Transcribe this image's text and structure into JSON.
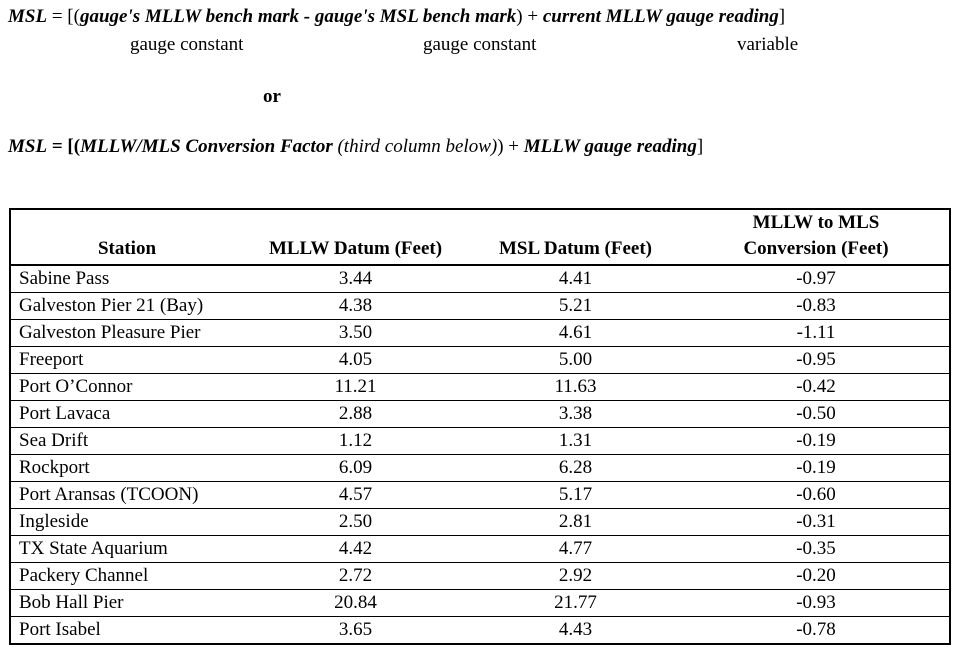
{
  "formula1": {
    "lhs": "MSL",
    "eq": " = [(",
    "term1": "gauge's MLLW bench mark - gauge's MSL bench mark",
    "mid": ") + ",
    "term2": "current MLLW gauge reading",
    "end": "]",
    "note1": "gauge constant",
    "note2": "gauge constant",
    "note3": "variable"
  },
  "or_label": "or",
  "formula2": {
    "lhs": "MSL",
    "eq": " = [(",
    "term1": "MLLW/MLS Conversion Factor",
    "paren": " (third column below)",
    "mid": ") + ",
    "term2": "MLLW gauge reading",
    "end": "]"
  },
  "table": {
    "headers": {
      "station": "Station",
      "mllw": "MLLW Datum (Feet)",
      "msl": "MSL Datum (Feet)",
      "conv_line1": "MLLW to MLS",
      "conv_line2": "Conversion (Feet)"
    },
    "rows": [
      {
        "station": "Sabine Pass",
        "mllw": "3.44",
        "msl": "4.41",
        "conv": "-0.97"
      },
      {
        "station": "Galveston Pier 21 (Bay)",
        "mllw": "4.38",
        "msl": "5.21",
        "conv": "-0.83"
      },
      {
        "station": "Galveston Pleasure Pier",
        "mllw": "3.50",
        "msl": "4.61",
        "conv": "-1.11"
      },
      {
        "station": "Freeport",
        "mllw": "4.05",
        "msl": "5.00",
        "conv": "-0.95"
      },
      {
        "station": "Port O’Connor",
        "mllw": "11.21",
        "msl": "11.63",
        "conv": "-0.42"
      },
      {
        "station": "Port Lavaca",
        "mllw": "2.88",
        "msl": "3.38",
        "conv": "-0.50"
      },
      {
        "station": "Sea Drift",
        "mllw": "1.12",
        "msl": "1.31",
        "conv": "-0.19"
      },
      {
        "station": "Rockport",
        "mllw": "6.09",
        "msl": "6.28",
        "conv": "-0.19"
      },
      {
        "station": "Port Aransas (TCOON)",
        "mllw": "4.57",
        "msl": "5.17",
        "conv": "-0.60"
      },
      {
        "station": "Ingleside",
        "mllw": "2.50",
        "msl": "2.81",
        "conv": "-0.31"
      },
      {
        "station": "TX State Aquarium",
        "mllw": "4.42",
        "msl": "4.77",
        "conv": "-0.35"
      },
      {
        "station": "Packery Channel",
        "mllw": "2.72",
        "msl": "2.92",
        "conv": "-0.20"
      },
      {
        "station": "Bob Hall Pier",
        "mllw": "20.84",
        "msl": "21.77",
        "conv": "-0.93"
      },
      {
        "station": "Port Isabel",
        "mllw": "3.65",
        "msl": "4.43",
        "conv": "-0.78"
      }
    ]
  }
}
